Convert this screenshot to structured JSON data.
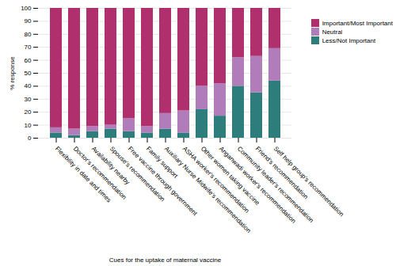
{
  "chart_data": {
    "type": "bar",
    "stacked": true,
    "xlabel": "Cues for the uptake of maternal vaccine",
    "ylabel": "% response",
    "categories": [
      "Flexibility in date and times",
      "Doctor's recommendation",
      "Availability nearby",
      "Spouse's recommendation",
      "Free vaccine through government",
      "Family support",
      "Auxiliary Nurse Midwife's recommendation",
      "ASHA worker's recommendation",
      "Other women taking vaccine",
      "Anganwadi worker's recommendation",
      "Community leader's recommendation",
      "Friend's recommendation",
      "Self help group's recommendation"
    ],
    "series": [
      {
        "name": "Less/Not Important",
        "color": "#2e7d7d",
        "values": [
          4,
          2,
          5,
          7,
          5,
          4,
          7,
          4,
          22,
          17,
          40,
          35,
          44
        ]
      },
      {
        "name": "Neutral",
        "color": "#b07dba",
        "values": [
          4,
          5,
          4,
          3,
          10,
          5,
          12,
          17,
          18,
          25,
          22,
          28,
          25
        ]
      },
      {
        "name": "Important/Most Important",
        "color": "#b0306e",
        "values": [
          92,
          93,
          91,
          90,
          85,
          91,
          81,
          79,
          60,
          58,
          38,
          37,
          31
        ]
      }
    ],
    "ylim": [
      0,
      100
    ],
    "yticks": [
      0,
      10,
      20,
      30,
      40,
      50,
      60,
      70,
      80,
      90,
      100
    ],
    "grid": true,
    "legend": "right"
  }
}
